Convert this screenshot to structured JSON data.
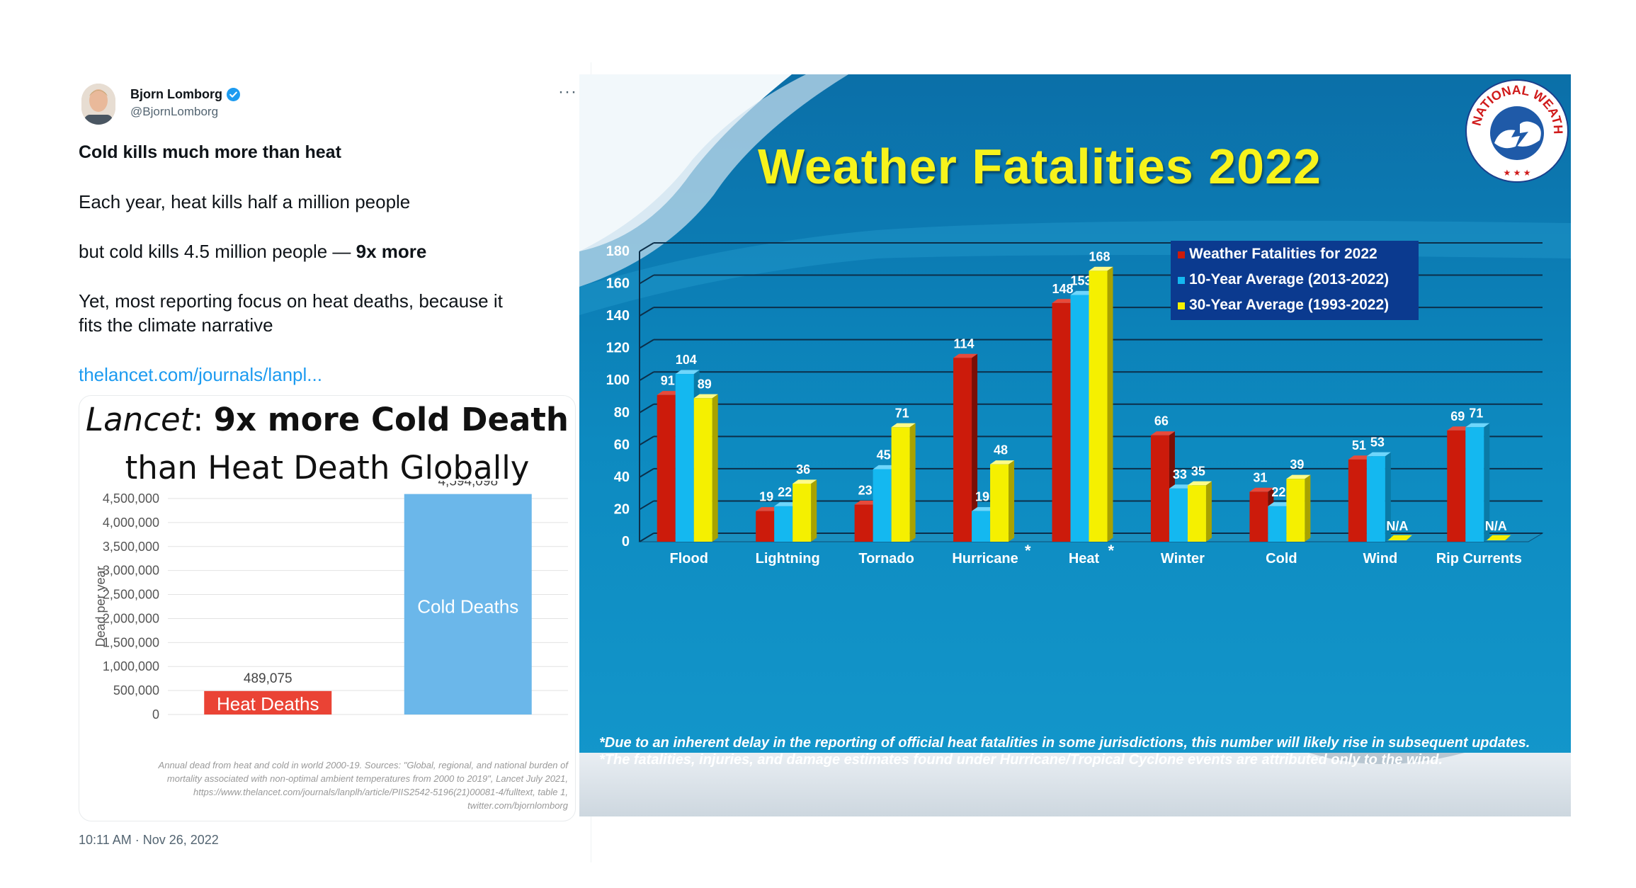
{
  "tweet": {
    "author_name": "Bjorn Lomborg",
    "author_handle": "@BjornLomborg",
    "more_label": "···",
    "headline": "Cold kills much more than heat",
    "line1": "Each year, heat kills half a million people",
    "line2_prefix": "but cold kills 4.5 million people — ",
    "line2_bold": "9x more",
    "line3a": "Yet, most reporting focus on heat deaths, because it",
    "line3b": "fits the climate narrative",
    "link_text": "thelancet.com/journals/lanpl...",
    "timestamp": "10:11 AM · Nov 26, 2022",
    "icons": {
      "verified": "verified-badge-icon",
      "more": "more-options-icon"
    }
  },
  "lancet_chart": {
    "title_italic": "Lancet",
    "title_colon": ": ",
    "title_bold": "9x more Cold Death",
    "title_line2": "than Heat Death Globally",
    "source_lines": [
      "Annual dead from heat and cold in world 2000-19. Sources: \"Global, regional, and national burden of",
      "mortality associated with non-optimal ambient temperatures from 2000 to 2019\", Lancet July 2021,",
      "https://www.thelancet.com/journals/lanplh/article/PIIS2542-5196(21)00081-4/fulltext, table 1,",
      "twitter.com/bjornlomborg"
    ]
  },
  "nws": {
    "title": "Weather Fatalities 2022",
    "logo_text_top": "NATIONAL WEATHER SERVICE",
    "logo_stars": "★ ★ ★",
    "hurricane_asterisk": "*",
    "heat_asterisk": "*",
    "na_label": "N/A",
    "footnote1": "*Due to an inherent delay in the reporting of official heat fatalities in some jurisdictions, this number will likely rise in subsequent updates.",
    "footnote2": "*The fatalities, injuries, and damage estimates  found under Hurricane/Tropical Cyclone events are attributed only to the wind."
  },
  "chart_data": [
    {
      "type": "bar",
      "title": "Lancet: 9x more Cold Death than Heat Death Globally",
      "xlabel": "",
      "ylabel": "Dead per year",
      "ylim": [
        0,
        4500000
      ],
      "yticks": [
        "0",
        "500,000",
        "1,000,000",
        "1,500,000",
        "2,000,000",
        "2,500,000",
        "3,000,000",
        "3,500,000",
        "4,000,000",
        "4,500,000"
      ],
      "categories": [
        "Heat Deaths",
        "Cold Deaths"
      ],
      "values": [
        489075,
        4594098
      ],
      "value_labels": [
        "489,075",
        "4,594,098"
      ],
      "colors": [
        "#ea4335",
        "#6bb7ea"
      ],
      "grid": true,
      "legend": "none"
    },
    {
      "type": "bar",
      "title": "Weather Fatalities 2022",
      "xlabel": "",
      "ylabel": "",
      "ylim": [
        0,
        180
      ],
      "yticks": [
        "0",
        "20",
        "40",
        "60",
        "80",
        "100",
        "120",
        "140",
        "160",
        "180"
      ],
      "categories": [
        "Flood",
        "Lightning",
        "Tornado",
        "Hurricane",
        "Heat",
        "Winter",
        "Cold",
        "Wind",
        "Rip Currents"
      ],
      "series": [
        {
          "name": "Weather Fatalities for 2022",
          "color": "#cc1b0b",
          "values": [
            91,
            19,
            23,
            114,
            148,
            66,
            31,
            51,
            69
          ]
        },
        {
          "name": "10-Year Average (2013-2022)",
          "color": "#14b8f0",
          "values": [
            104,
            22,
            45,
            19,
            153,
            33,
            22,
            53,
            71
          ]
        },
        {
          "name": "30-Year Average (1993-2022)",
          "color": "#f5f000",
          "values": [
            89,
            36,
            71,
            48,
            168,
            35,
            39,
            null,
            null
          ]
        }
      ],
      "grid": true,
      "legend": "top-right"
    }
  ]
}
